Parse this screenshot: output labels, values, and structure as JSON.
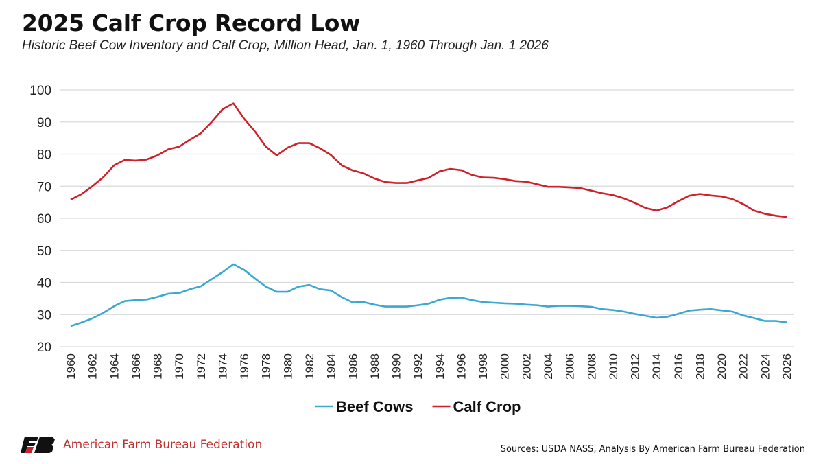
{
  "header": {
    "title": "2025 Calf Crop Record Low",
    "subtitle": "Historic Beef Cow Inventory and Calf Crop, Million Head, Jan. 1, 1960 Through Jan. 1 2026"
  },
  "footer": {
    "organization": "American Farm Bureau Federation",
    "logo_text": "FB",
    "sources": "Sources: USDA NASS, Analysis By American Farm Bureau Federation"
  },
  "chart_data": {
    "type": "line",
    "title": "2025 Calf Crop Record Low",
    "subtitle": "Historic Beef Cow Inventory and Calf Crop, Million Head, Jan. 1, 1960 Through Jan. 1 2026",
    "xlabel": "",
    "ylabel": "",
    "xlim": [
      1960,
      2026
    ],
    "ylim": [
      20,
      100
    ],
    "yticks": [
      20,
      30,
      40,
      50,
      60,
      70,
      80,
      90,
      100
    ],
    "xticks": [
      1960,
      1962,
      1964,
      1966,
      1968,
      1970,
      1972,
      1974,
      1976,
      1978,
      1980,
      1982,
      1984,
      1986,
      1988,
      1990,
      1992,
      1994,
      1996,
      1998,
      2000,
      2002,
      2004,
      2006,
      2008,
      2010,
      2012,
      2014,
      2016,
      2018,
      2020,
      2022,
      2024,
      2026
    ],
    "grid": true,
    "legend_position": "bottom",
    "x_start": 1960,
    "series": [
      {
        "name": "Beef Cows",
        "color": "#3aa8d0",
        "values": [
          26.4,
          27.5,
          28.8,
          30.5,
          32.6,
          34.2,
          34.5,
          34.7,
          35.5,
          36.5,
          36.7,
          37.9,
          38.8,
          41.0,
          43.2,
          45.7,
          43.9,
          41.2,
          38.7,
          37.1,
          37.1,
          38.7,
          39.2,
          37.9,
          37.5,
          35.4,
          33.8,
          33.9,
          33.1,
          32.5,
          32.5,
          32.5,
          32.9,
          33.4,
          34.6,
          35.2,
          35.3,
          34.5,
          33.9,
          33.7,
          33.5,
          33.4,
          33.1,
          32.9,
          32.5,
          32.7,
          32.7,
          32.6,
          32.4,
          31.7,
          31.4,
          30.9,
          30.2,
          29.6,
          29.0,
          29.3,
          30.2,
          31.2,
          31.5,
          31.7,
          31.3,
          30.9,
          29.7,
          28.9,
          28.0,
          28.0,
          27.6
        ]
      },
      {
        "name": "Calf Crop",
        "color": "#d0202a",
        "values": [
          65.8,
          67.5,
          70.0,
          72.8,
          76.5,
          78.2,
          78.0,
          78.3,
          79.6,
          81.5,
          82.3,
          84.5,
          86.5,
          90.0,
          94.0,
          95.8,
          91.0,
          87.0,
          82.3,
          79.6,
          82.0,
          83.4,
          83.4,
          81.8,
          79.7,
          76.5,
          74.9,
          74.0,
          72.4,
          71.3,
          71.0,
          71.0,
          71.8,
          72.6,
          74.6,
          75.4,
          75.0,
          73.5,
          72.7,
          72.6,
          72.2,
          71.6,
          71.4,
          70.6,
          69.8,
          69.8,
          69.6,
          69.4,
          68.6,
          67.8,
          67.2,
          66.2,
          64.8,
          63.2,
          62.4,
          63.4,
          65.3,
          67.0,
          67.6,
          67.1,
          66.8,
          66.0,
          64.4,
          62.4,
          61.4,
          60.8,
          60.4
        ]
      }
    ]
  }
}
